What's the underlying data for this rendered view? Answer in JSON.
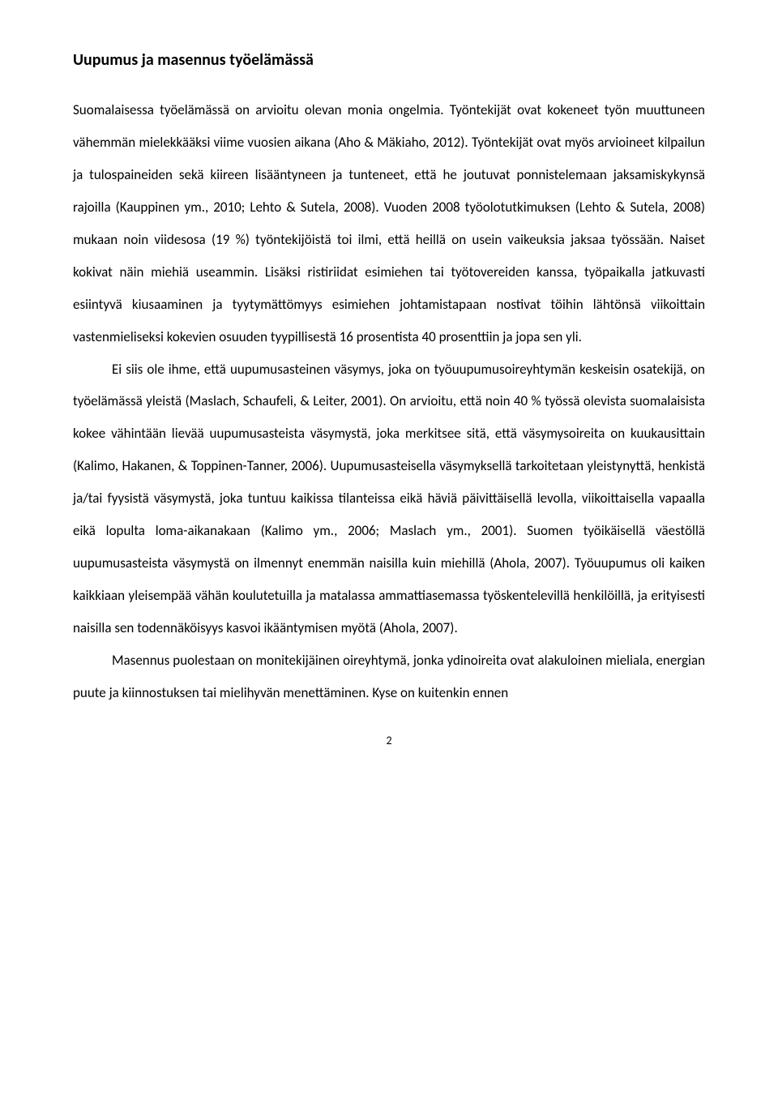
{
  "document": {
    "title": "Uupumus ja masennus työelämässä",
    "title_font_size": 20,
    "title_font_weight": 700,
    "body_font_size": 17,
    "body_line_height": 2.35,
    "text_align": "justify",
    "text_color": "#000000",
    "background_color": "#ffffff",
    "page_number": "2",
    "paragraphs": [
      {
        "indent": false,
        "text": "Suomalaisessa työelämässä on arvioitu olevan monia ongelmia. Työntekijät ovat kokeneet työn muuttuneen vähemmän mielekkääksi viime vuosien aikana (Aho & Mäkiaho, 2012). Työntekijät ovat myös arvioineet kilpailun ja tulospaineiden sekä kiireen lisääntyneen ja tunteneet, että he joutuvat ponnistelemaan jaksamiskykynsä rajoilla (Kauppinen ym., 2010; Lehto & Sutela, 2008). Vuoden 2008 työolotutkimuksen (Lehto & Sutela, 2008) mukaan noin viidesosa (19 %) työntekijöistä toi ilmi, että heillä on usein vaikeuksia jaksaa työssään. Naiset kokivat näin miehiä useammin. Lisäksi ristiriidat esimiehen tai työtovereiden kanssa, työpaikalla jatkuvasti esiintyvä kiusaaminen ja tyytymättömyys esimiehen johtamistapaan nostivat töihin lähtönsä viikoittain vastenmieliseksi kokevien osuuden tyypillisestä 16 prosentista 40 prosenttiin ja jopa sen yli."
      },
      {
        "indent": true,
        "text": "Ei siis ole ihme, että uupumusasteinen väsymys, joka on työuupumusoireyhtymän keskeisin osatekijä, on työelämässä yleistä (Maslach, Schaufeli, & Leiter, 2001). On arvioitu, että noin 40 % työssä olevista suomalaisista kokee vähintään lievää uupumusasteista väsymystä, joka merkitsee sitä, että väsymysoireita on kuukausittain (Kalimo, Hakanen, & Toppinen-Tanner, 2006). Uupumusasteisella väsymyksellä tarkoitetaan yleistynyttä, henkistä ja/tai fyysistä väsymystä, joka tuntuu kaikissa tilanteissa eikä häviä päivittäisellä levolla, viikoittaisella vapaalla eikä lopulta loma-aikanakaan (Kalimo ym., 2006; Maslach ym., 2001). Suomen työikäisellä väestöllä uupumusasteista väsymystä on ilmennyt enemmän naisilla kuin miehillä (Ahola, 2007). Työuupumus oli kaiken kaikkiaan yleisempää vähän koulutetuilla ja matalassa ammattiasemassa työskentelevillä henkilöillä, ja erityisesti naisilla sen todennäköisyys kasvoi ikääntymisen myötä (Ahola, 2007)."
      },
      {
        "indent": true,
        "text": "Masennus puolestaan on monitekijäinen oireyhtymä, jonka ydinoireita ovat alakuloinen mieliala, energian puute ja kiinnostuksen tai mielihyvän menettäminen. Kyse on kuitenkin ennen"
      }
    ]
  }
}
